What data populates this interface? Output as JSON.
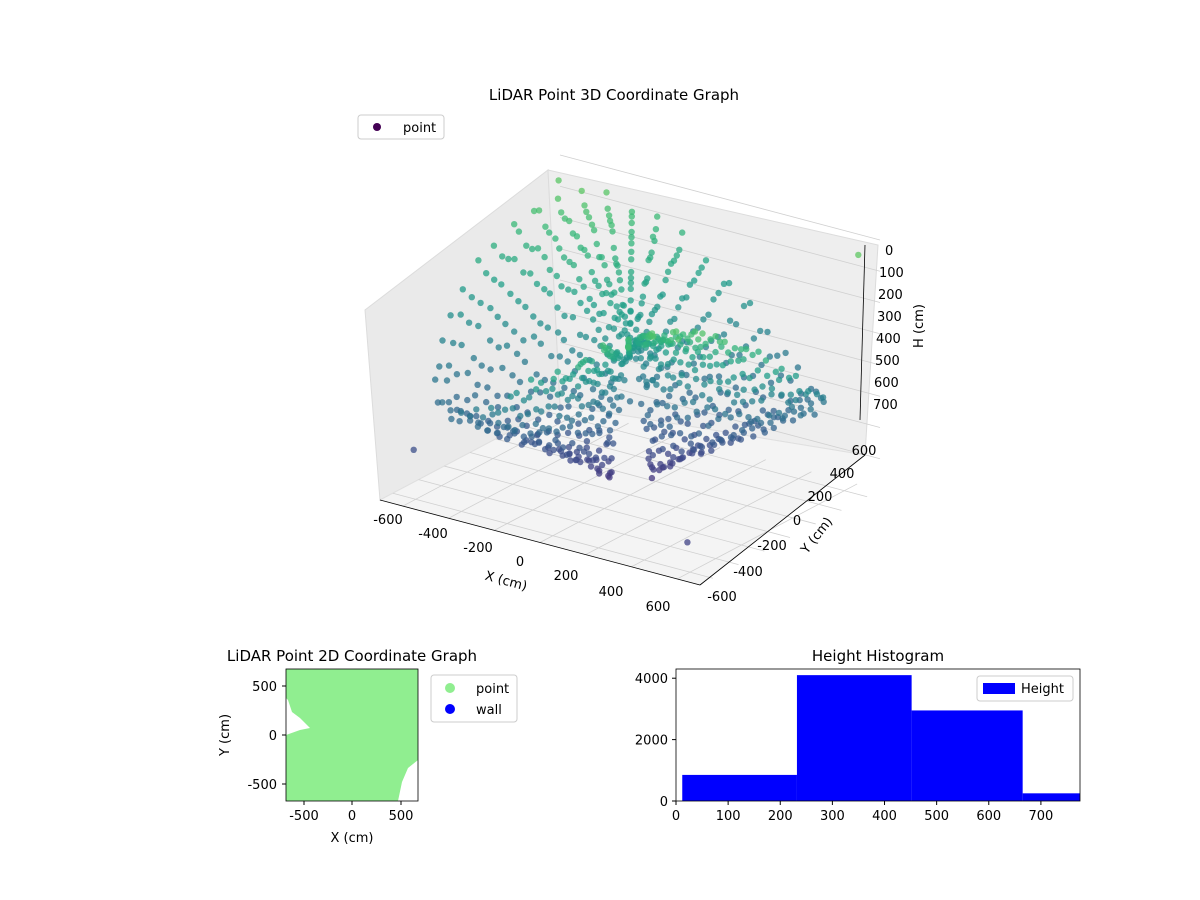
{
  "chart_data": [
    {
      "type": "scatter",
      "projection": "3d",
      "title": "LiDAR Point 3D Coordinate Graph",
      "xlabel": "X (cm)",
      "ylabel": "Y (cm)",
      "zlabel": "H (cm)",
      "xlim": [
        -700,
        700
      ],
      "ylim": [
        -700,
        700
      ],
      "zlim": [
        0,
        800
      ],
      "z_inverted": true,
      "xticks": [
        -600,
        -400,
        -200,
        0,
        200,
        400,
        600
      ],
      "yticks": [
        -600,
        -400,
        -200,
        0,
        200,
        400,
        600
      ],
      "zticks": [
        0,
        100,
        200,
        300,
        400,
        500,
        600,
        700
      ],
      "grid": true,
      "legend": {
        "position": "upper-left",
        "entries": [
          "point"
        ],
        "color": "#440154"
      },
      "colormap": "viridis",
      "series": [
        {
          "name": "point",
          "description": "radial LiDAR scan rings, color mapped to height",
          "rays": 48,
          "points_per_ray": 18,
          "sample_points": [
            {
              "x": -650,
              "y": 600,
              "h": 50
            },
            {
              "x": 650,
              "y": 620,
              "h": 40
            },
            {
              "x": 600,
              "y": -620,
              "h": 700
            },
            {
              "x": -620,
              "y": -580,
              "h": 650
            },
            {
              "x": 0,
              "y": 0,
              "h": 500
            }
          ]
        }
      ]
    },
    {
      "type": "scatter",
      "title": "LiDAR Point 2D Coordinate Graph",
      "xlabel": "X (cm)",
      "ylabel": "Y (cm)",
      "xlim": [
        -680,
        680
      ],
      "ylim": [
        -680,
        680
      ],
      "xticks": [
        -500,
        0,
        500
      ],
      "yticks": [
        -500,
        0,
        500
      ],
      "legend": {
        "position": "outside-right",
        "entries": [
          {
            "name": "point",
            "color": "#90ee90"
          },
          {
            "name": "wall",
            "color": "#0000ff"
          }
        ]
      },
      "series": [
        {
          "name": "point",
          "color": "#90ee90",
          "coverage": "dense fill of almost the whole plane"
        },
        {
          "name": "wall",
          "color": "#0000ff",
          "points": []
        }
      ]
    },
    {
      "type": "bar",
      "subtype": "histogram",
      "title": "Height Histogram",
      "xlabel": "",
      "ylabel": "",
      "xlim": [
        0,
        775
      ],
      "ylim": [
        0,
        4300
      ],
      "xticks": [
        0,
        100,
        200,
        300,
        400,
        500,
        600,
        700
      ],
      "yticks": [
        0,
        2000,
        4000
      ],
      "legend": {
        "position": "upper-right",
        "entries": [
          "Height"
        ]
      },
      "color": "#0000ff",
      "bins": [
        {
          "start": 12,
          "end": 232,
          "count": 850
        },
        {
          "start": 232,
          "end": 452,
          "count": 4100
        },
        {
          "start": 452,
          "end": 665,
          "count": 2950
        },
        {
          "start": 665,
          "end": 775,
          "count": 250
        }
      ]
    }
  ]
}
